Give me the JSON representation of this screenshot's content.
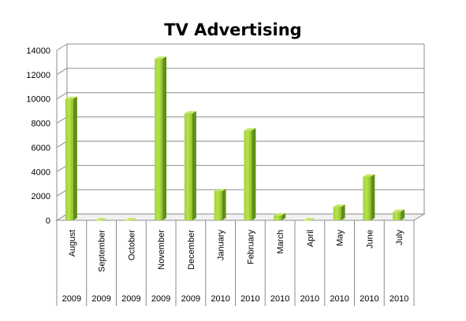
{
  "chart_data": {
    "type": "bar",
    "title": "TV Advertising",
    "xlabel": "",
    "ylabel": "",
    "ylim": [
      0,
      14000
    ],
    "yticks": [
      0,
      2000,
      4000,
      6000,
      8000,
      10000,
      12000,
      14000
    ],
    "grid": true,
    "legend": "none",
    "bar_color": "#8bc34a",
    "categories": [
      "August",
      "September",
      "October",
      "November",
      "December",
      "January",
      "February",
      "March",
      "April",
      "May",
      "June",
      "July"
    ],
    "years": [
      "2009",
      "2009",
      "2009",
      "2009",
      "2009",
      "2010",
      "2010",
      "2010",
      "2010",
      "2010",
      "2010",
      "2010"
    ],
    "values": [
      10000,
      0,
      0,
      13300,
      8800,
      2400,
      7400,
      400,
      0,
      1100,
      3600,
      700
    ]
  }
}
